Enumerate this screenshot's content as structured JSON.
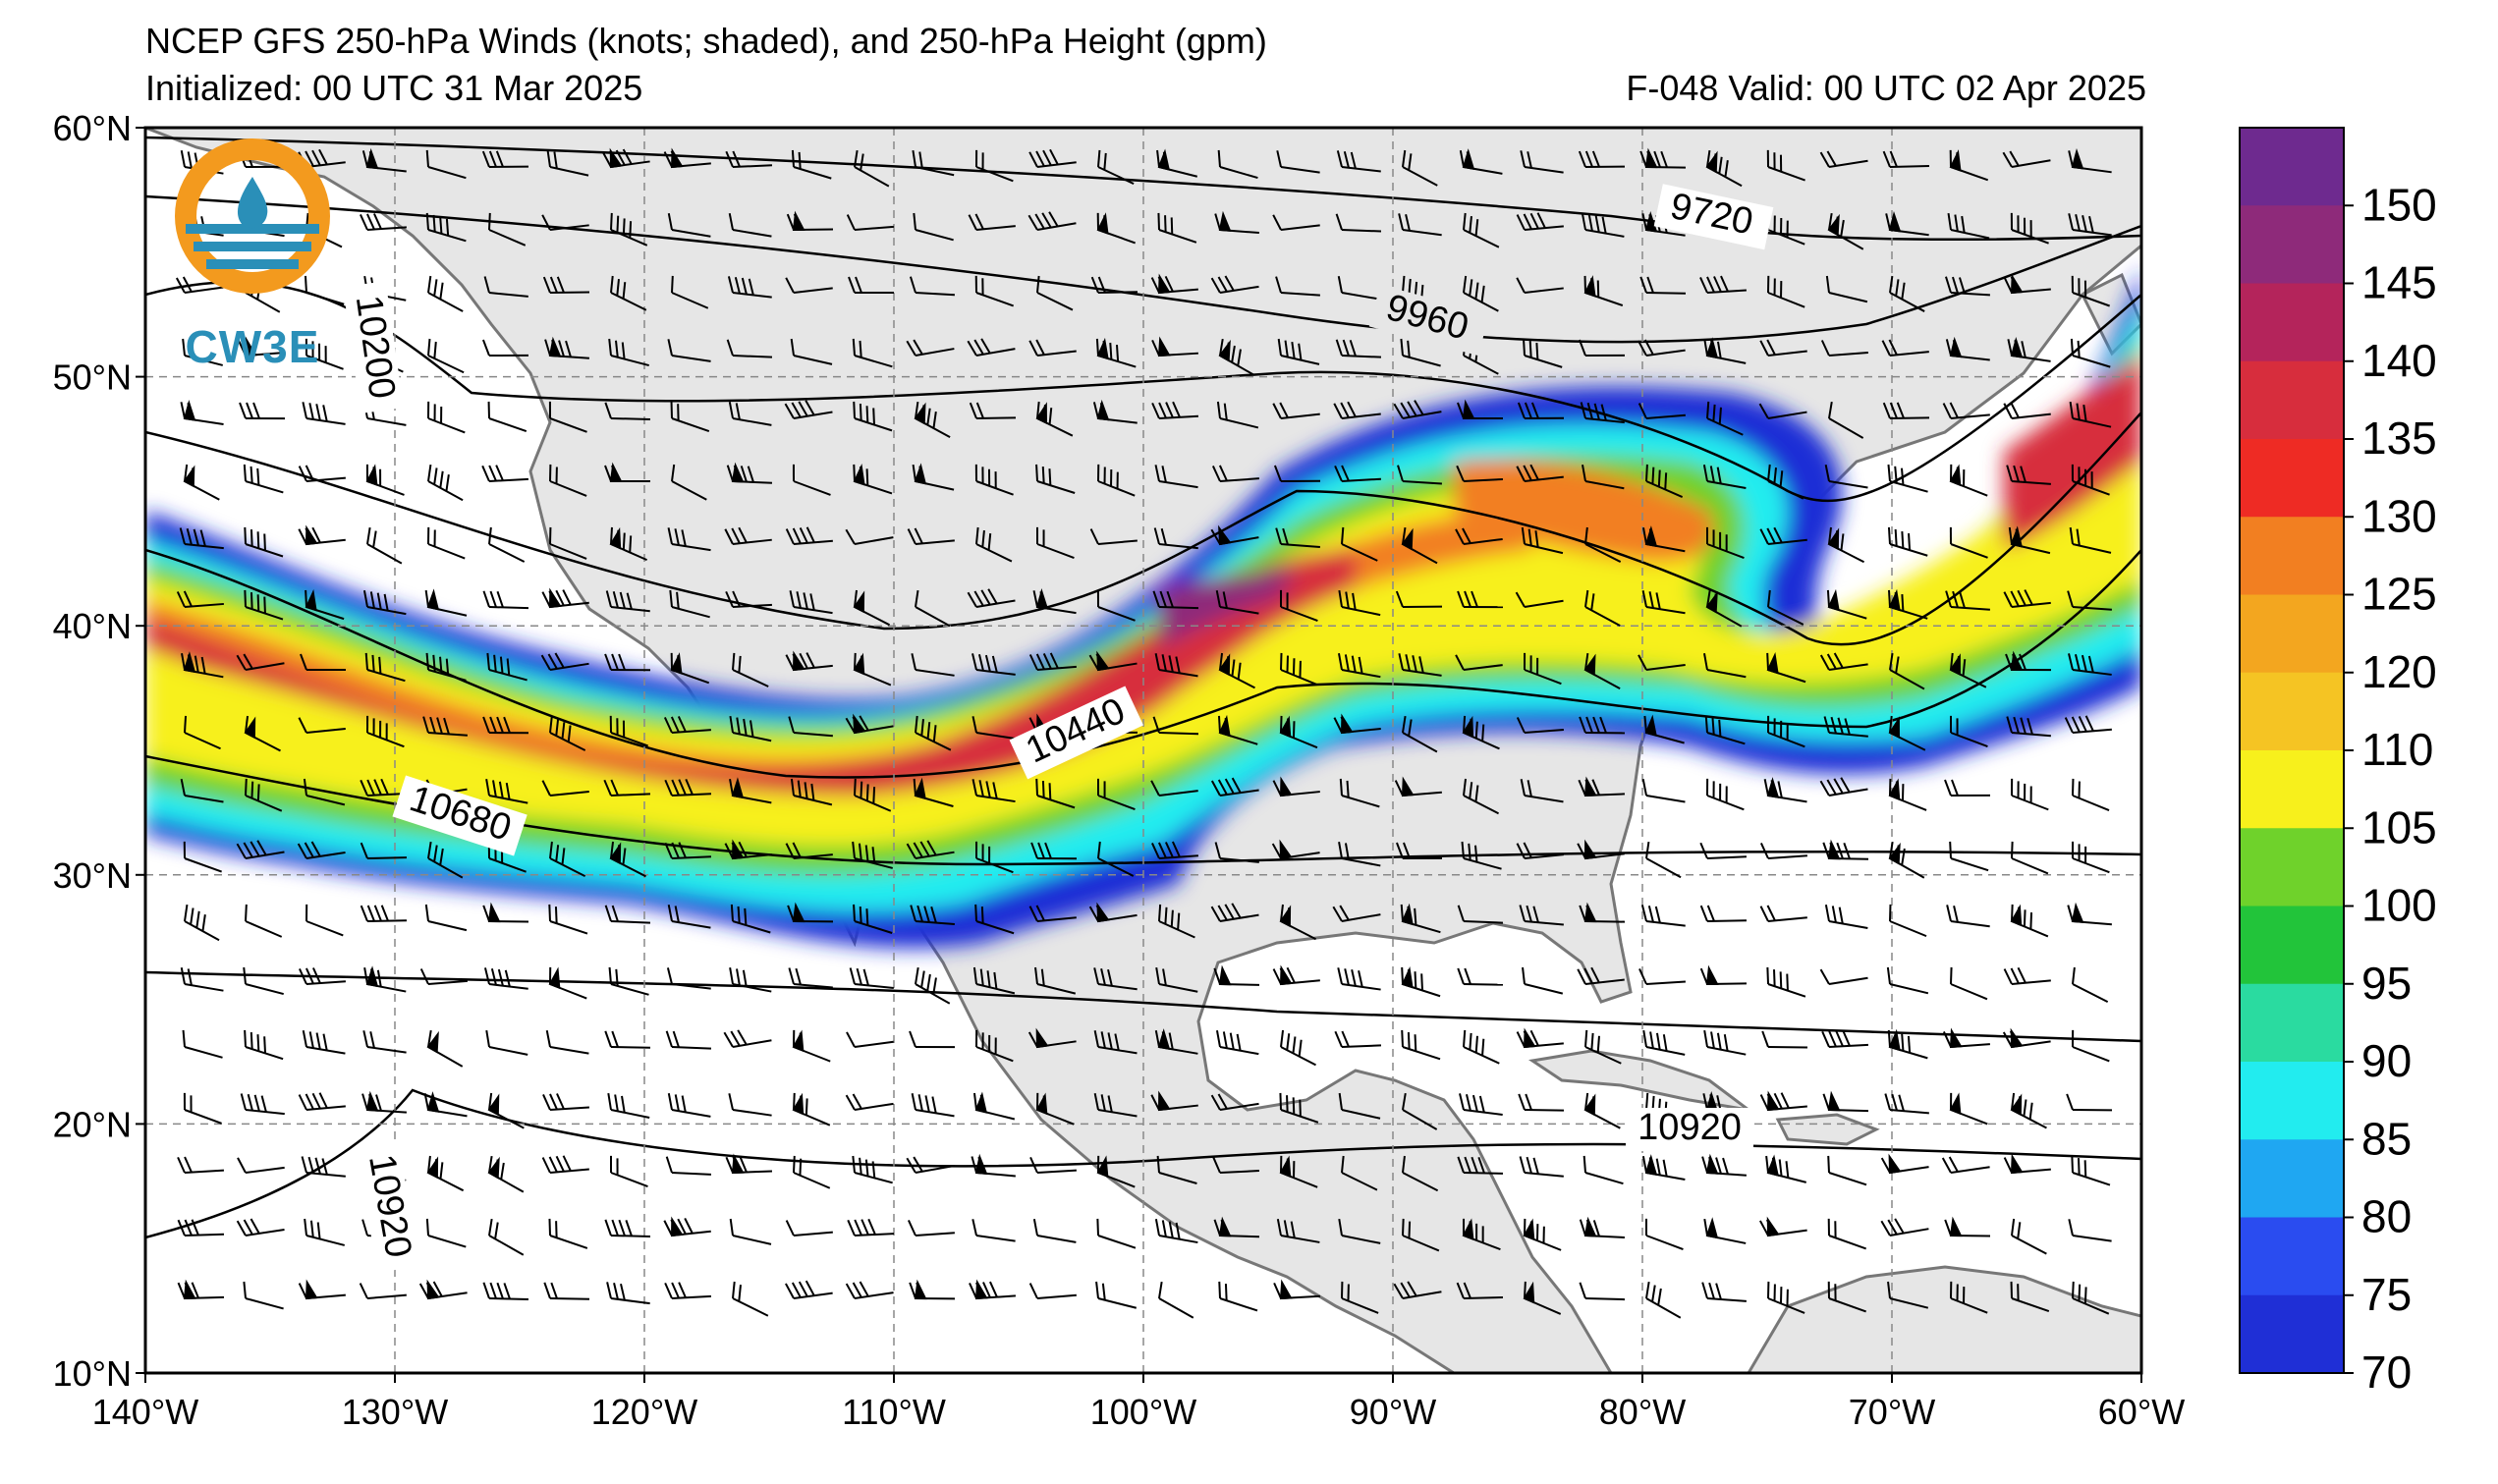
{
  "header": {
    "title": "NCEP GFS 250-hPa Winds (knots; shaded), and 250-hPa Height (gpm)",
    "initialized": "Initialized: 00 UTC 31 Mar 2025",
    "valid": "F-048  Valid: 00 UTC 02 Apr 2025"
  },
  "logo": {
    "text": "CW3E",
    "ring_color": "#f39a1e",
    "wave_color": "#2a8fb8"
  },
  "map": {
    "lon_range": [
      -140,
      -60
    ],
    "lat_range": [
      10,
      60
    ],
    "lon_ticks": [
      "140°W",
      "130°W",
      "120°W",
      "110°W",
      "100°W",
      "90°W",
      "80°W",
      "70°W",
      "60°W"
    ],
    "lat_ticks": [
      "60°N",
      "50°N",
      "40°N",
      "30°N",
      "20°N",
      "10°N"
    ],
    "grid": "dashed",
    "land_color": "#e6e6e6",
    "coast_color": "#777777",
    "contour_labels": [
      "9720",
      "9960",
      "10200",
      "10440",
      "10680",
      "10920",
      "10920"
    ]
  },
  "colorbar": {
    "ticks": [
      "70",
      "75",
      "80",
      "85",
      "90",
      "95",
      "100",
      "105",
      "110",
      "120",
      "125",
      "130",
      "135",
      "140",
      "145",
      "150"
    ],
    "colors": [
      "#1f2fd6",
      "#2a4cf0",
      "#1fa7f2",
      "#22ecef",
      "#2adba0",
      "#22c43a",
      "#6fd22b",
      "#f7f01c",
      "#f5c423",
      "#f3a61f",
      "#f27f21",
      "#ee2b24",
      "#d72d3d",
      "#b4245b",
      "#8e2a7a",
      "#6e2a8f"
    ]
  }
}
